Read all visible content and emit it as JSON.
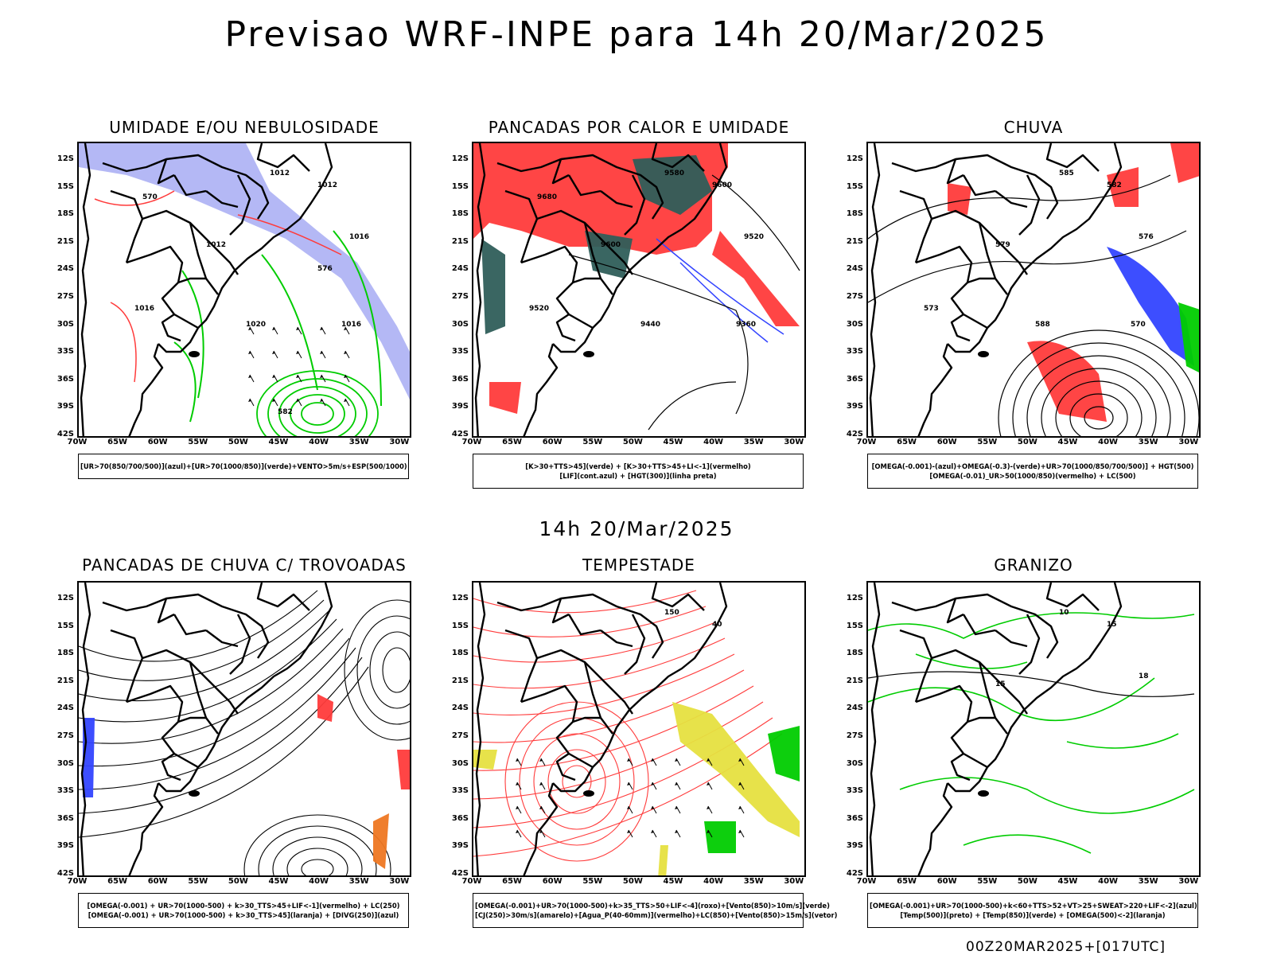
{
  "title": "Previsao WRF-INPE  para 14h 20/Mar/2025",
  "mid_date": "14h 20/Mar/2025",
  "footer": "00Z20MAR2025+[017UTC]",
  "axes": {
    "lat_labels": [
      "12S",
      "15S",
      "18S",
      "21S",
      "24S",
      "27S",
      "30S",
      "33S",
      "36S",
      "39S",
      "42S"
    ],
    "lon_labels": [
      "70W",
      "65W",
      "60W",
      "55W",
      "50W",
      "45W",
      "40W",
      "35W",
      "30W"
    ]
  },
  "colors": {
    "red": "#ff3b3b",
    "green": "#00cc00",
    "blue": "#3344ff",
    "lavender": "#b0b4f4",
    "darkteal": "#2f5e5a",
    "yellow": "#e6e040",
    "orange": "#ee7722"
  },
  "panels": [
    {
      "id": "umidade",
      "title": "UMIDADE E/OU NEBULOSIDADE",
      "legend": [
        "[UR>70(850/700/500)](azul)+[UR>70(1000/850)](verde)+VENTO>5m/s+ESP(500/1000)"
      ],
      "labels": [
        "1012",
        "1012",
        "1012",
        "1016",
        "1016",
        "1016",
        "1020",
        "570",
        "576",
        "582"
      ],
      "icons": [
        "isobar-contours",
        "wind-vectors",
        "humidity-shading"
      ]
    },
    {
      "id": "pancadas",
      "title": "PANCADAS POR CALOR E UMIDADE",
      "legend": [
        "[K>30+TTS>45](verde) + [K>30+TTS>45+LI<-1](vermelho)",
        "[LIF](cont.azul) + [HGT(300)](linha preta)"
      ],
      "labels": [
        "9580",
        "9600",
        "9600",
        "9520",
        "9520",
        "9360",
        "9440",
        "9680"
      ],
      "icons": [
        "height-contours",
        "instability-shading"
      ]
    },
    {
      "id": "chuva",
      "title": "CHUVA",
      "legend": [
        "[OMEGA(-0.001)-(azul)+OMEGA(-0.3)-(verde)+UR>70(1000/850/700/500)] + HGT(500)",
        "[OMEGA(-0.01)_UR>50(1000/850)(vermelho) + LC(500)"
      ],
      "labels": [
        "585",
        "582",
        "579",
        "576",
        "573",
        "570",
        "588"
      ],
      "icons": [
        "height-contours",
        "rain-shading"
      ]
    },
    {
      "id": "trovoadas",
      "title": "PANCADAS DE CHUVA C/ TROVOADAS",
      "legend": [
        "[OMEGA(-0.001) + UR>70(1000-500) + k>30_TTS>45+LIF<-1](vermelho) + LC(250)",
        "[OMEGA(-0.001) + UR>70(1000-500) + k>30_TTS>45](laranja) + [DIVG(250)](azul)"
      ],
      "labels": [],
      "icons": [
        "streamlines",
        "thunderstorm-shading"
      ]
    },
    {
      "id": "tempestade",
      "title": "TEMPESTADE",
      "legend": [
        "[OMEGA(-0.001)+UR>70(1000-500)+k>35_TTS>50+LIF<-4](roxo)+[Vento(850)>10m/s](verde)",
        "[CJ(250)>30m/s](amarelo)+[Agua_P(40-60mm)](vermelho)+LC(850)+[Vento(850)>15m/s](vetor)"
      ],
      "labels": [
        "150",
        "40"
      ],
      "icons": [
        "streamlines",
        "jet-shading",
        "wind-vectors"
      ]
    },
    {
      "id": "granizo",
      "title": "GRANIZO",
      "legend": [
        "[OMEGA(-0.001)+UR>70(1000-500)+k<60+TTS>52+VT>25+SWEAT>220+LIF<-2](azul)",
        "[Temp(500)](preto) + [Temp(850)](verde) + [OMEGA(500)<-2](laranja)"
      ],
      "labels": [
        "10",
        "15",
        "15",
        "18"
      ],
      "icons": [
        "temperature-contours"
      ]
    }
  ]
}
